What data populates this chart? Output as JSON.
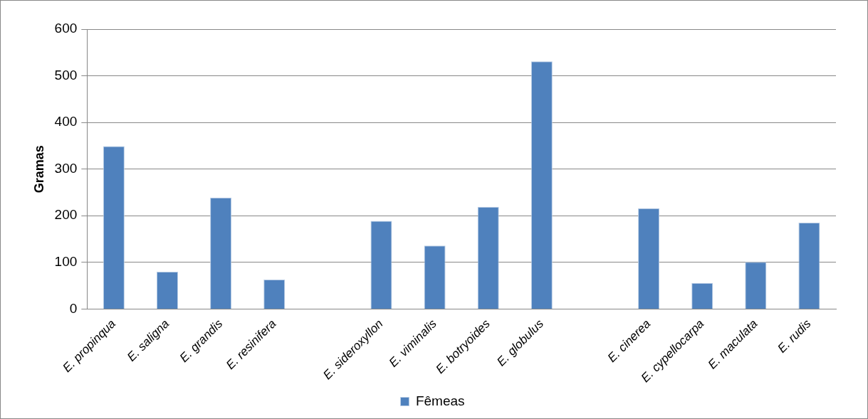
{
  "chart_data": {
    "type": "bar",
    "ylabel": "Gramas",
    "categories": [
      "E. propinqua",
      "E. saligna",
      "E. grandis",
      "E. resinifera",
      null,
      "E. sideroxyllon",
      "E. viminalis",
      "E. botryoides",
      "E. globulus",
      null,
      "E. cinerea",
      "E. cypellocarpa",
      "E. maculata",
      "E. rudis"
    ],
    "series": [
      {
        "name": "Fêmeas",
        "color": "#4f81bd",
        "values": [
          349,
          80,
          239,
          63,
          null,
          189,
          136,
          219,
          531,
          null,
          216,
          56,
          101,
          185
        ]
      }
    ],
    "ylim": [
      0,
      600
    ],
    "yticks": [
      0,
      100,
      200,
      300,
      400,
      500,
      600
    ],
    "grid": "y",
    "legend": "bottom"
  }
}
